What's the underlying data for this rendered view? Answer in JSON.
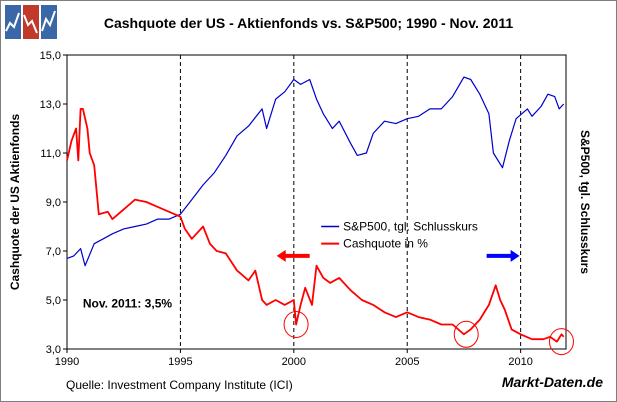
{
  "page": {
    "title": "Cashquote der US - Aktienfonds vs. S&P500; 1990 - Nov. 2011",
    "source": "Quelle: Investment Company Institute (ICI)",
    "brand": "Markt-Daten.de"
  },
  "chart_data": {
    "type": "line",
    "title": "Cashquote der US - Aktienfonds vs. S&P500; 1990 - Nov. 2011",
    "xlabel": "",
    "ylabel": "Cashquote der US Aktienfonds",
    "y2label": "S&P500, tgl. Schlusskurs",
    "xlim": [
      1990,
      2012
    ],
    "ylim": [
      3.0,
      15.0
    ],
    "x_ticks": [
      1990,
      1995,
      2000,
      2005,
      2010
    ],
    "y_ticks": [
      3.0,
      5.0,
      7.0,
      9.0,
      11.0,
      13.0,
      15.0
    ],
    "y_tick_labels": [
      "3,0",
      "5,0",
      "7,0",
      "9,0",
      "11,0",
      "13,0",
      "15,0"
    ],
    "vertical_dashed_lines": [
      1995,
      2000,
      2005,
      2010
    ],
    "legend": [
      "S&P500, tgl. Schlusskurs",
      "Cashquote in %"
    ],
    "annotation": "Nov. 2011: 3,5%",
    "colors": {
      "sp500": "#0000cc",
      "cash": "#ff0000",
      "arrow_left": "#ff0000",
      "arrow_right": "#0000ff"
    },
    "arrows": [
      {
        "direction": "left",
        "series": "Cashquote in %",
        "x": 2000.7,
        "y": 6.8
      },
      {
        "direction": "right",
        "series": "S&P500, tgl. Schlusskurs",
        "x": 2008.5,
        "y": 6.8
      }
    ],
    "circles": [
      {
        "x": 2000.1,
        "y": 4.0
      },
      {
        "x": 2007.6,
        "y": 3.6
      },
      {
        "x": 2011.8,
        "y": 3.3
      }
    ],
    "series": [
      {
        "name": "S&P500, tgl. Schlusskurs",
        "x": [
          1990.0,
          1990.3,
          1990.6,
          1990.8,
          1991.2,
          1991.6,
          1992.0,
          1992.5,
          1993.0,
          1993.5,
          1994.0,
          1994.5,
          1995.0,
          1995.5,
          1996.0,
          1996.5,
          1997.0,
          1997.5,
          1998.0,
          1998.6,
          1998.8,
          1999.2,
          1999.6,
          2000.0,
          2000.3,
          2000.7,
          2001.0,
          2001.3,
          2001.7,
          2002.0,
          2002.5,
          2002.8,
          2003.2,
          2003.5,
          2004.0,
          2004.5,
          2005.0,
          2005.5,
          2006.0,
          2006.5,
          2007.0,
          2007.5,
          2007.8,
          2008.2,
          2008.6,
          2008.8,
          2009.2,
          2009.5,
          2009.8,
          2010.3,
          2010.5,
          2010.9,
          2011.2,
          2011.5,
          2011.7,
          2011.9
        ],
        "values": [
          6.7,
          6.8,
          7.1,
          6.4,
          7.3,
          7.5,
          7.7,
          7.9,
          8.0,
          8.1,
          8.3,
          8.3,
          8.5,
          9.1,
          9.7,
          10.2,
          10.9,
          11.7,
          12.1,
          12.8,
          12.0,
          13.2,
          13.5,
          14.0,
          13.8,
          14.0,
          13.2,
          12.6,
          12.0,
          12.3,
          11.4,
          10.9,
          11.0,
          11.8,
          12.3,
          12.2,
          12.4,
          12.5,
          12.8,
          12.8,
          13.3,
          14.1,
          14.0,
          13.4,
          12.6,
          11.0,
          10.4,
          11.5,
          12.4,
          12.8,
          12.5,
          12.9,
          13.4,
          13.3,
          12.8,
          13.0
        ]
      },
      {
        "name": "Cashquote in %",
        "x": [
          1990.0,
          1990.2,
          1990.4,
          1990.5,
          1990.6,
          1990.7,
          1990.9,
          1991.0,
          1991.2,
          1991.4,
          1991.8,
          1992.0,
          1992.5,
          1993.0,
          1993.5,
          1994.0,
          1994.5,
          1995.0,
          1995.2,
          1995.5,
          1996.0,
          1996.3,
          1996.6,
          1997.0,
          1997.5,
          1998.0,
          1998.3,
          1998.6,
          1998.8,
          1999.2,
          1999.6,
          2000.0,
          2000.1,
          2000.3,
          2000.5,
          2000.8,
          2001.0,
          2001.3,
          2001.6,
          2002.0,
          2002.5,
          2003.0,
          2003.5,
          2004.0,
          2004.5,
          2005.0,
          2005.5,
          2006.0,
          2006.5,
          2007.0,
          2007.5,
          2007.8,
          2008.2,
          2008.6,
          2008.9,
          2009.1,
          2009.3,
          2009.6,
          2010.0,
          2010.5,
          2011.0,
          2011.3,
          2011.6,
          2011.8,
          2011.9
        ],
        "values": [
          10.7,
          11.5,
          12.0,
          10.7,
          12.8,
          12.8,
          12.0,
          11.0,
          10.5,
          8.5,
          8.6,
          8.3,
          8.7,
          9.1,
          9.0,
          8.8,
          8.6,
          8.4,
          7.9,
          7.5,
          8.0,
          7.3,
          7.0,
          6.9,
          6.2,
          5.8,
          6.2,
          5.0,
          4.8,
          5.0,
          4.8,
          5.0,
          4.0,
          4.8,
          5.5,
          4.8,
          6.4,
          5.9,
          5.7,
          5.9,
          5.4,
          5.0,
          4.8,
          4.5,
          4.3,
          4.5,
          4.3,
          4.2,
          4.0,
          4.0,
          3.6,
          3.8,
          4.2,
          4.8,
          5.6,
          5.0,
          4.6,
          3.8,
          3.6,
          3.4,
          3.4,
          3.5,
          3.3,
          3.6,
          3.5
        ]
      }
    ]
  }
}
